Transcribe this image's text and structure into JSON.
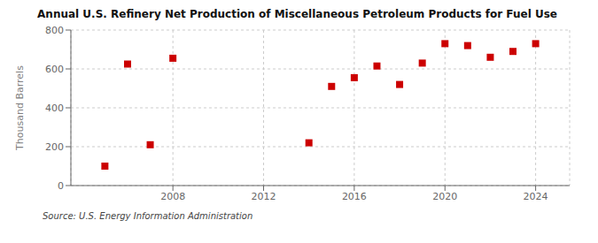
{
  "chart_data": {
    "type": "scatter",
    "title": "Annual U.S. Refinery Net Production of Miscellaneous Petroleum Products for Fuel Use",
    "ylabel": "Thousand Barrels",
    "source": "Source: U.S. Energy Information Administration",
    "x": [
      2005,
      2006,
      2007,
      2008,
      2014,
      2015,
      2016,
      2017,
      2018,
      2019,
      2020,
      2021,
      2022,
      2023,
      2024
    ],
    "values": [
      100,
      625,
      210,
      655,
      220,
      510,
      555,
      615,
      520,
      630,
      730,
      720,
      660,
      690,
      730
    ],
    "color": "#cc0000",
    "marker": "square",
    "xlim": [
      2003.5,
      2025.5
    ],
    "ylim": [
      0,
      800
    ],
    "xticks": [
      2008,
      2012,
      2016,
      2020,
      2024
    ],
    "yticks": [
      0,
      200,
      400,
      600,
      800
    ],
    "grid": true
  }
}
